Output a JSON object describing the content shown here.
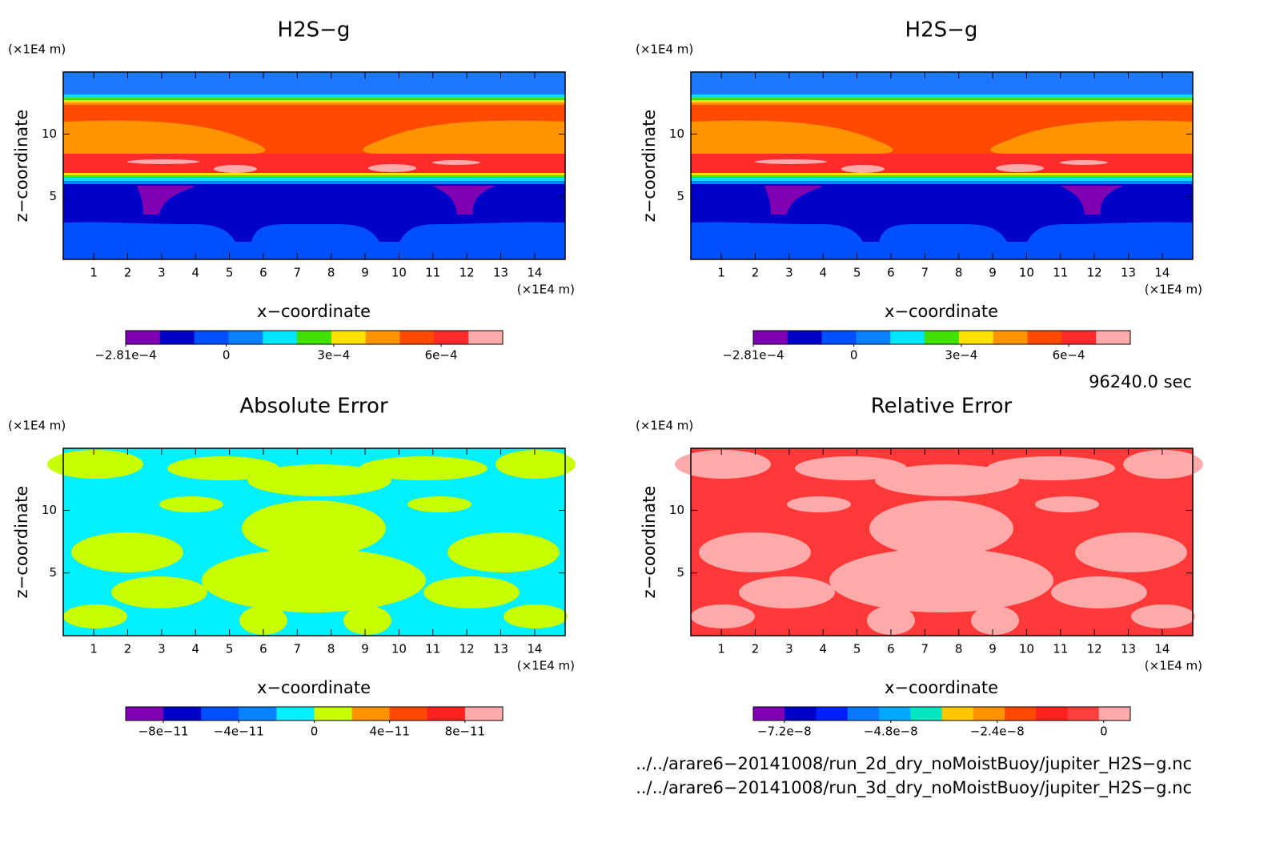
{
  "panels": [
    {
      "title": "H2S−g",
      "xlabel": "x−coordinate",
      "ylabel": "z−coordinate",
      "xunit": "(×1E4 m)",
      "yunit": "(×1E4 m)",
      "xlim": [
        0.1,
        14.9
      ],
      "ylim": [
        0,
        14.95
      ],
      "xticks": [
        1,
        2,
        3,
        4,
        5,
        6,
        7,
        8,
        9,
        10,
        11,
        12,
        13,
        14
      ],
      "yticks": [
        5,
        10
      ],
      "colorbar": {
        "lim": [
          -0.000281,
          0.000772
        ],
        "colors": [
          "#8000b4",
          "#0000c8",
          "#0050ff",
          "#0a82ff",
          "#00e6ff",
          "#40e000",
          "#ffe000",
          "#ff9400",
          "#ff4a00",
          "#ff2a2a",
          "#ffaaaa"
        ],
        "ticks": [
          {
            "value": -0.000281,
            "label": "−2.81e−4"
          },
          0,
          {
            "value": 0.0003,
            "label": "3e−4"
          },
          {
            "value": 0.0006,
            "label": "6e−4"
          }
        ]
      }
    },
    {
      "title": "H2S−g",
      "xlabel": "x−coordinate",
      "ylabel": "z−coordinate",
      "xunit": "(×1E4 m)",
      "yunit": "(×1E4 m)",
      "xlim": [
        0.1,
        14.9
      ],
      "ylim": [
        0,
        14.95
      ],
      "xticks": [
        1,
        2,
        3,
        4,
        5,
        6,
        7,
        8,
        9,
        10,
        11,
        12,
        13,
        14
      ],
      "yticks": [
        5,
        10
      ],
      "colorbar": {
        "lim": [
          -0.000281,
          0.000772
        ],
        "colors": [
          "#8000b4",
          "#0000c8",
          "#0050ff",
          "#0a82ff",
          "#00e6ff",
          "#40e000",
          "#ffe000",
          "#ff9400",
          "#ff4a00",
          "#ff2a2a",
          "#ffaaaa"
        ],
        "ticks": [
          {
            "value": -0.000281,
            "label": "−2.81e−4"
          },
          0,
          {
            "value": 0.0003,
            "label": "3e−4"
          },
          {
            "value": 0.0006,
            "label": "6e−4"
          }
        ]
      }
    },
    {
      "title": "Absolute Error",
      "xlabel": "x−coordinate",
      "ylabel": "z−coordinate",
      "xunit": "(×1E4 m)",
      "yunit": "(×1E4 m)",
      "xlim": [
        0.1,
        14.9
      ],
      "ylim": [
        0,
        14.95
      ],
      "xticks": [
        1,
        2,
        3,
        4,
        5,
        6,
        7,
        8,
        9,
        10,
        11,
        12,
        13,
        14
      ],
      "yticks": [
        5,
        10
      ],
      "colorbar": {
        "lim": [
          -1e-10,
          1e-10
        ],
        "colors": [
          "#8000b4",
          "#0000c8",
          "#0050ff",
          "#0a82ff",
          "#00f0ff",
          "#c8ff00",
          "#ff9400",
          "#ff4a00",
          "#ff2020",
          "#ffaaaa"
        ],
        "ticks": [
          {
            "value": -8e-11,
            "label": "−8e−11"
          },
          {
            "value": -4e-11,
            "label": "−4e−11"
          },
          0,
          {
            "value": 4e-11,
            "label": "4e−11"
          },
          {
            "value": 8e-11,
            "label": "8e−11"
          }
        ]
      }
    },
    {
      "title": "Relative Error",
      "xlabel": "x−coordinate",
      "ylabel": "z−coordinate",
      "xunit": "(×1E4 m)",
      "yunit": "(×1E4 m)",
      "xlim": [
        0.1,
        14.9
      ],
      "ylim": [
        0,
        14.95
      ],
      "xticks": [
        1,
        2,
        3,
        4,
        5,
        6,
        7,
        8,
        9,
        10,
        11,
        12,
        13,
        14
      ],
      "yticks": [
        5,
        10
      ],
      "colorbar": {
        "lim": [
          -7.9e-08,
          6e-09
        ],
        "colors": [
          "#8000b4",
          "#0000c8",
          "#0020ff",
          "#0a78ff",
          "#00a8ff",
          "#00e6c0",
          "#ffc800",
          "#ff9400",
          "#ff4a00",
          "#ff2020",
          "#ff4040",
          "#ffaaaa"
        ],
        "ticks": [
          {
            "value": -7.2e-08,
            "label": "−7.2e−8"
          },
          {
            "value": -4.8e-08,
            "label": "−4.8e−8"
          },
          {
            "value": -2.4e-08,
            "label": "−2.4e−8"
          },
          0
        ]
      }
    }
  ],
  "time": "96240.0 sec",
  "files": [
    "../../arare6−20141008/run_2d_dry_noMoistBuoy/jupiter_H2S−g.nc",
    "../../arare6−20141008/run_3d_dry_noMoistBuoy/jupiter_H2S−g.nc"
  ]
}
